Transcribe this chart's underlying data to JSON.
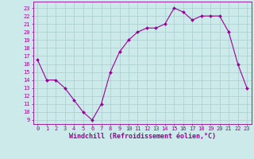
{
  "x": [
    0,
    1,
    2,
    3,
    4,
    5,
    6,
    7,
    8,
    9,
    10,
    11,
    12,
    13,
    14,
    15,
    16,
    17,
    18,
    19,
    20,
    21,
    22,
    23
  ],
  "y": [
    16.5,
    14.0,
    14.0,
    13.0,
    11.5,
    10.0,
    9.0,
    11.0,
    15.0,
    17.5,
    19.0,
    20.0,
    20.5,
    20.5,
    21.0,
    23.0,
    22.5,
    21.5,
    22.0,
    22.0,
    22.0,
    20.0,
    16.0,
    13.0
  ],
  "line_color": "#990099",
  "marker": "D",
  "marker_size": 2.0,
  "bg_color": "#cceaea",
  "grid_color": "#aacccc",
  "xlabel": "Windchill (Refroidissement éolien,°C)",
  "ylabel_ticks": [
    9,
    10,
    11,
    12,
    13,
    14,
    15,
    16,
    17,
    18,
    19,
    20,
    21,
    22,
    23
  ],
  "ylim": [
    8.5,
    23.8
  ],
  "xlim": [
    -0.5,
    23.5
  ],
  "tick_color": "#990099",
  "label_color": "#990099",
  "tick_fontsize": 5.0,
  "xlabel_fontsize": 6.0
}
